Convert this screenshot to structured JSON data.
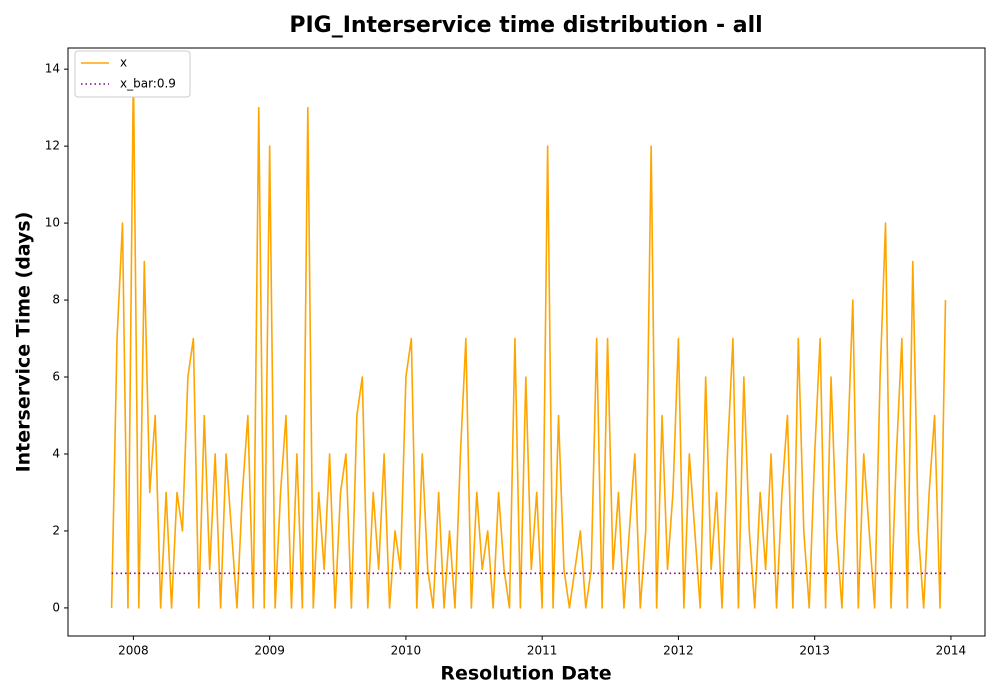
{
  "chart_data": {
    "type": "line",
    "title": "PIG_Interservice time distribution - all",
    "x_label": "Resolution Date",
    "y_label": "Interservice Time (days)",
    "xlim": [
      2007.52,
      2014.25
    ],
    "xticks": [
      2008,
      2009,
      2010,
      2011,
      2012,
      2013,
      2014
    ],
    "ylim": [
      -0.73,
      14.55
    ],
    "yticks": [
      0,
      2,
      4,
      6,
      8,
      10,
      12,
      14
    ],
    "legend": "upper left",
    "grid": false,
    "series": [
      {
        "name": "x",
        "color": "#ffa500",
        "style": "solid",
        "x": [
          2007.84,
          2007.88,
          2007.92,
          2007.96,
          2008.0,
          2008.04,
          2008.08,
          2008.12,
          2008.16,
          2008.2,
          2008.24,
          2008.28,
          2008.32,
          2008.36,
          2008.4,
          2008.44,
          2008.48,
          2008.52,
          2008.56,
          2008.6,
          2008.64,
          2008.68,
          2008.72,
          2008.76,
          2008.8,
          2008.84,
          2008.88,
          2008.92,
          2008.96,
          2009.0,
          2009.04,
          2009.08,
          2009.12,
          2009.16,
          2009.2,
          2009.24,
          2009.28,
          2009.32,
          2009.36,
          2009.4,
          2009.44,
          2009.48,
          2009.52,
          2009.56,
          2009.6,
          2009.64,
          2009.68,
          2009.72,
          2009.76,
          2009.8,
          2009.84,
          2009.88,
          2009.92,
          2009.96,
          2010.0,
          2010.04,
          2010.08,
          2010.12,
          2010.16,
          2010.2,
          2010.24,
          2010.28,
          2010.32,
          2010.36,
          2010.4,
          2010.44,
          2010.48,
          2010.52,
          2010.56,
          2010.6,
          2010.64,
          2010.68,
          2010.72,
          2010.76,
          2010.8,
          2010.84,
          2010.88,
          2010.92,
          2010.96,
          2011.0,
          2011.04,
          2011.08,
          2011.12,
          2011.16,
          2011.2,
          2011.24,
          2011.28,
          2011.32,
          2011.36,
          2011.4,
          2011.44,
          2011.48,
          2011.52,
          2011.56,
          2011.6,
          2011.64,
          2011.68,
          2011.72,
          2011.76,
          2011.8,
          2011.84,
          2011.88,
          2011.92,
          2011.96,
          2012.0,
          2012.04,
          2012.08,
          2012.12,
          2012.16,
          2012.2,
          2012.24,
          2012.28,
          2012.32,
          2012.36,
          2012.4,
          2012.44,
          2012.48,
          2012.52,
          2012.56,
          2012.6,
          2012.64,
          2012.68,
          2012.72,
          2012.76,
          2012.8,
          2012.84,
          2012.88,
          2012.92,
          2012.96,
          2013.0,
          2013.04,
          2013.08,
          2013.12,
          2013.16,
          2013.2,
          2013.24,
          2013.28,
          2013.32,
          2013.36,
          2013.4,
          2013.44,
          2013.48,
          2013.52,
          2013.56,
          2013.6,
          2013.64,
          2013.68,
          2013.72,
          2013.76,
          2013.8,
          2013.84,
          2013.88,
          2013.92,
          2013.96
        ],
        "values": [
          0,
          7,
          10,
          0,
          14,
          0,
          9,
          3,
          5,
          0,
          3,
          0,
          3,
          2,
          6,
          7,
          0,
          5,
          1,
          4,
          0,
          4,
          2,
          0,
          3,
          5,
          0,
          13,
          0,
          12,
          0,
          3,
          5,
          0,
          4,
          0,
          13,
          0,
          3,
          1,
          4,
          0,
          3,
          4,
          0,
          5,
          6,
          0,
          3,
          1,
          4,
          0,
          2,
          1,
          6,
          7,
          0,
          4,
          1,
          0,
          3,
          0,
          2,
          0,
          4,
          7,
          0,
          3,
          1,
          2,
          0,
          3,
          1,
          0,
          7,
          0,
          6,
          1,
          3,
          0,
          12,
          0,
          5,
          1,
          0,
          1,
          2,
          0,
          1,
          7,
          0,
          7,
          1,
          3,
          0,
          2,
          4,
          0,
          2,
          12,
          0,
          5,
          1,
          3,
          7,
          0,
          4,
          2,
          0,
          6,
          1,
          3,
          0,
          4,
          7,
          0,
          6,
          2,
          0,
          3,
          1,
          4,
          0,
          3,
          5,
          0,
          7,
          2,
          0,
          4,
          7,
          0,
          6,
          2,
          0,
          4,
          8,
          0,
          4,
          2,
          0,
          6,
          10,
          0,
          4,
          7,
          0,
          9,
          2,
          0,
          3,
          5,
          0,
          8
        ]
      },
      {
        "name": "x_bar:0.9",
        "color": "#800080",
        "style": "dotted",
        "x": [
          2007.84,
          2013.96
        ],
        "values": [
          0.9,
          0.9
        ]
      }
    ]
  }
}
